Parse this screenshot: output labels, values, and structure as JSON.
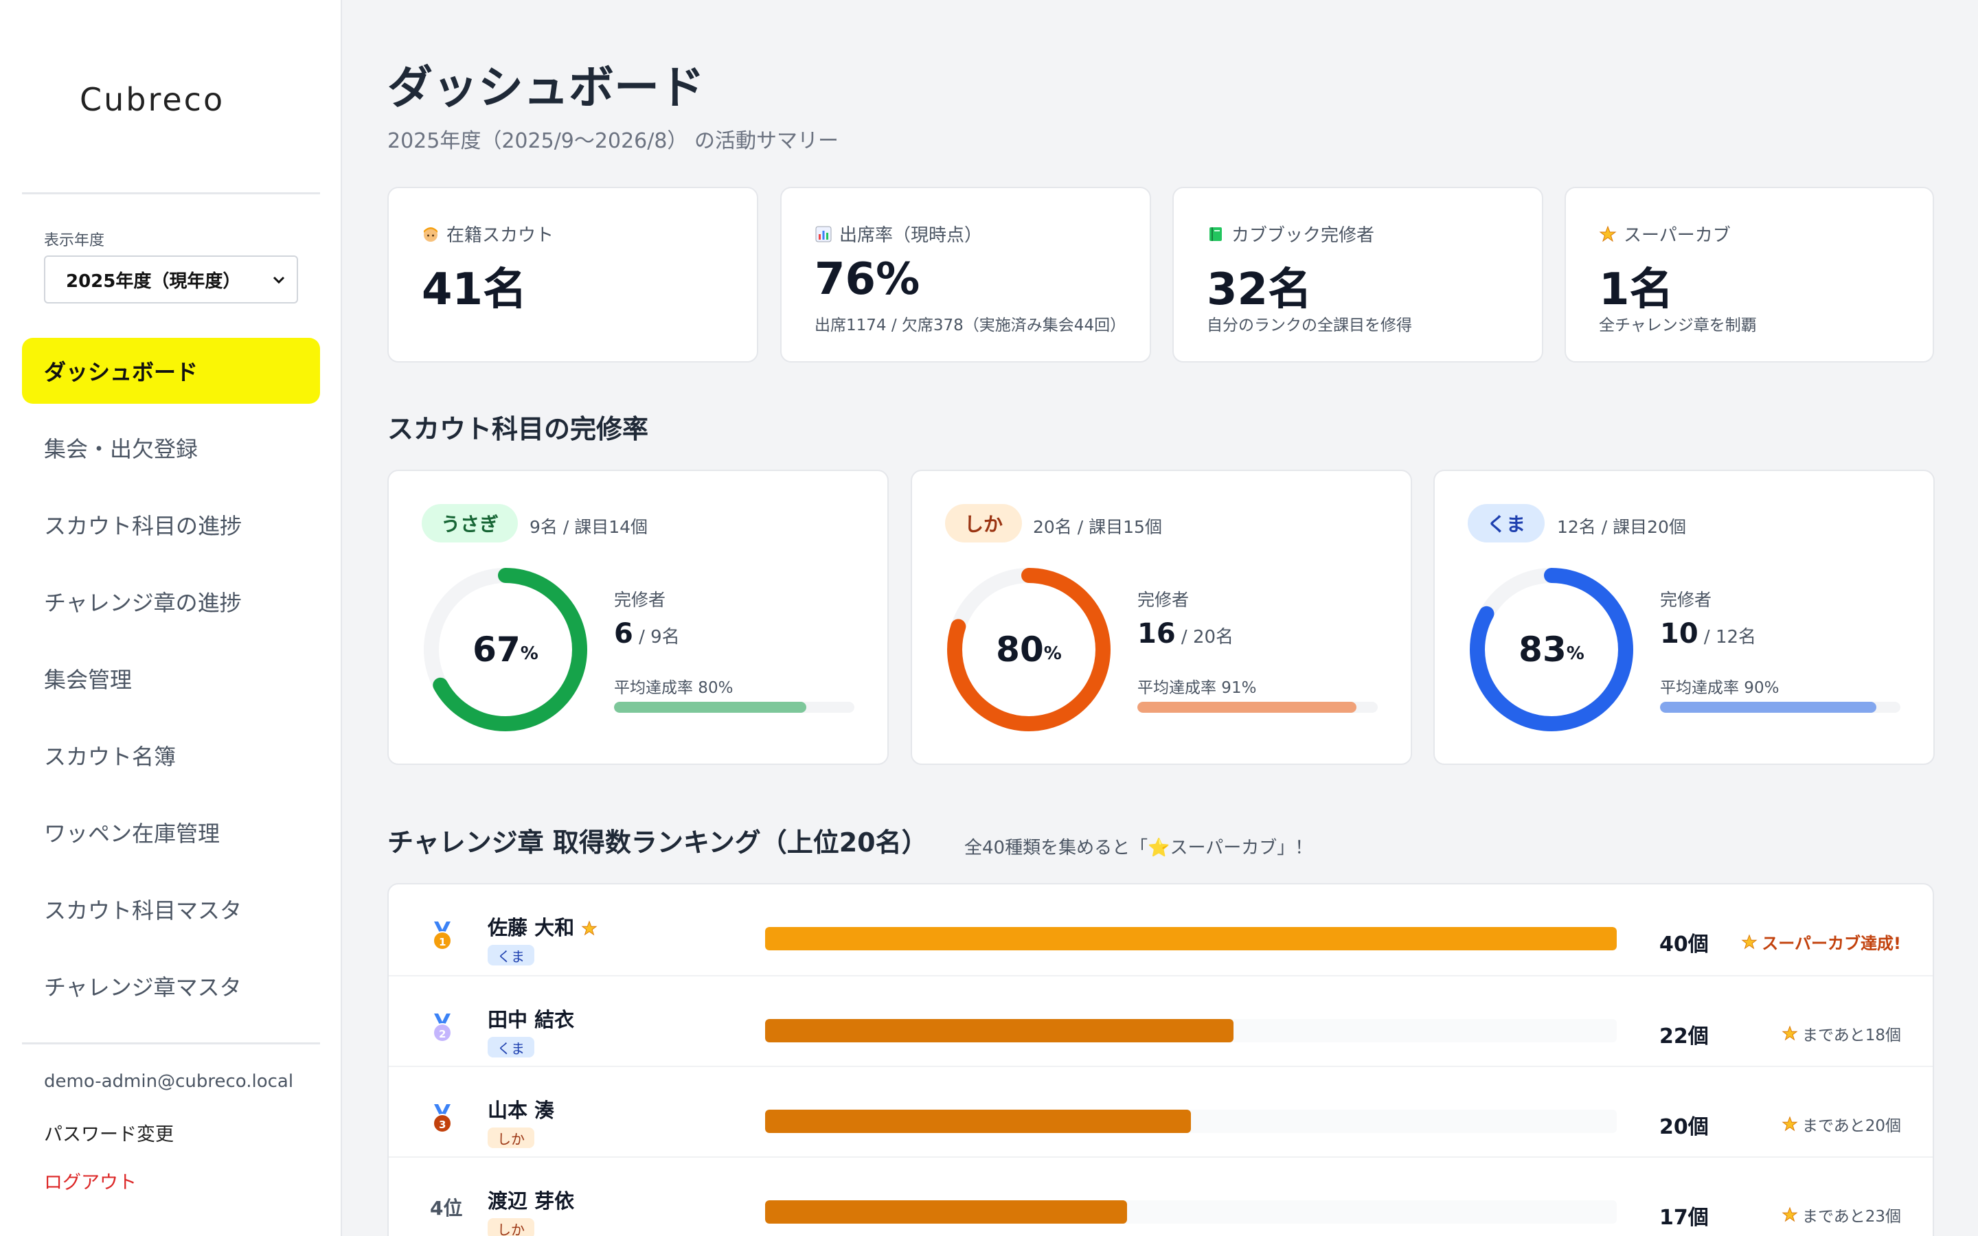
{
  "sidebar": {
    "logo": "Cubreco",
    "year_label": "表示年度",
    "year_selected": "2025年度（現年度）",
    "nav": [
      {
        "label": "ダッシュボード",
        "active": true
      },
      {
        "label": "集会・出欠登録"
      },
      {
        "label": "スカウト科目の進捗"
      },
      {
        "label": "チャレンジ章の進捗"
      },
      {
        "label": "集会管理"
      },
      {
        "label": "スカウト名簿"
      },
      {
        "label": "ワッペン在庫管理"
      },
      {
        "label": "スカウト科目マスタ"
      },
      {
        "label": "チャレンジ章マスタ"
      }
    ],
    "email": "demo-admin@cubreco.local",
    "password_change": "パスワード変更",
    "logout": "ログアウト"
  },
  "header": {
    "title": "ダッシュボード",
    "subtitle": "2025年度（2025/9〜2026/8） の活動サマリー"
  },
  "stats": [
    {
      "icon": "scout-face-icon",
      "label": "在籍スカウト",
      "value": "41名",
      "note": ""
    },
    {
      "icon": "bar-chart-icon",
      "label": "出席率（現時点）",
      "value": "76%",
      "note": "出席1174 / 欠席378（実施済み集会44回）"
    },
    {
      "icon": "green-book-icon",
      "label": "カブブック完修者",
      "value": "32名",
      "note": "自分のランクの全課目を修得"
    },
    {
      "icon": "star-icon",
      "label": "スーパーカブ",
      "value": "1名",
      "note": "全チャレンジ章を制覇"
    }
  ],
  "completion": {
    "title": "スカウト科目の完修率",
    "ranks": [
      {
        "name": "うさぎ",
        "info": "9名 / 課目14個",
        "percent": 67,
        "pct_text": "67",
        "unit": "%",
        "completed_label": "完修者",
        "completed": "6",
        "total": " / 9名",
        "avg_label": "平均達成率 80%",
        "avg": 80,
        "color": "#16a34a",
        "fill": "#7dc79a",
        "pill_bg": "#dcfce7",
        "pill_fg": "#166534"
      },
      {
        "name": "しか",
        "info": "20名 / 課目15個",
        "percent": 80,
        "pct_text": "80",
        "unit": "%",
        "completed_label": "完修者",
        "completed": "16",
        "total": " / 20名",
        "avg_label": "平均達成率 91%",
        "avg": 91,
        "color": "#ea580c",
        "fill": "#f0a178",
        "pill_bg": "#ffedd5",
        "pill_fg": "#9a3412"
      },
      {
        "name": "くま",
        "info": "12名 / 課目20個",
        "percent": 83,
        "pct_text": "83",
        "unit": "%",
        "completed_label": "完修者",
        "completed": "10",
        "total": " / 12名",
        "avg_label": "平均達成率 90%",
        "avg": 90,
        "color": "#2563eb",
        "fill": "#82a6ee",
        "pill_bg": "#dbeafe",
        "pill_fg": "#1e40af"
      }
    ]
  },
  "ranking": {
    "title": "チャレンジ章 取得数ランキング（上位20名）",
    "note": "全40種類を集めると「⭐スーパーカブ」！",
    "max": 40,
    "rows": [
      {
        "rank": "1",
        "medal": "gold",
        "name": "佐藤 大和",
        "super_star": true,
        "tag": "くま",
        "tag_bg": "#dbeafe",
        "tag_fg": "#1e40af",
        "count": 40,
        "count_text": "40個",
        "remain": "スーパーカブ達成!",
        "is_super": true,
        "bar": "#f59e0b"
      },
      {
        "rank": "2",
        "medal": "silver",
        "name": "田中 結衣",
        "super_star": false,
        "tag": "くま",
        "tag_bg": "#dbeafe",
        "tag_fg": "#1e40af",
        "count": 22,
        "count_text": "22個",
        "remain": "まであと18個",
        "is_super": false,
        "bar": "#d97706"
      },
      {
        "rank": "3",
        "medal": "bronze",
        "name": "山本 湊",
        "super_star": false,
        "tag": "しか",
        "tag_bg": "#ffedd5",
        "tag_fg": "#9a3412",
        "count": 20,
        "count_text": "20個",
        "remain": "まであと20個",
        "is_super": false,
        "bar": "#d97706"
      },
      {
        "rank": "4位",
        "medal": "",
        "name": "渡辺 芽依",
        "super_star": false,
        "tag": "しか",
        "tag_bg": "#ffedd5",
        "tag_fg": "#9a3412",
        "count": 17,
        "count_text": "17個",
        "remain": "まであと23個",
        "is_super": false,
        "bar": "#d97706"
      }
    ]
  }
}
